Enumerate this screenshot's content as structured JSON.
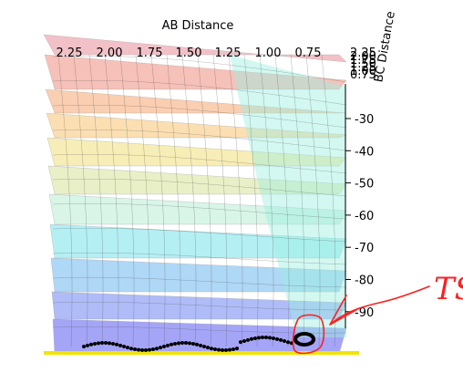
{
  "chart_data": {
    "type": "surface",
    "xlabel": "AB Distance",
    "ylabel": "BC Distance",
    "x_ticks": [
      "2.25",
      "2.00",
      "1.75",
      "1.50",
      "1.25",
      "1.00",
      "0.75"
    ],
    "y_ticks": [
      "2.25",
      "2.00",
      "1.75",
      "1.50",
      "1.25",
      "1.00",
      "0.75"
    ],
    "z_ticks": [
      "-30",
      "-40",
      "-50",
      "-60",
      "-70",
      "-80",
      "-90"
    ],
    "xlim": [
      0.5,
      2.4
    ],
    "ylim": [
      0.5,
      2.4
    ],
    "zlim": [
      -100,
      -20
    ],
    "grid": true,
    "colormap": "jet (contour-filled surface)",
    "band_colors": [
      "#5a5cf0",
      "#6f86f2",
      "#6fb7f0",
      "#78e3ec",
      "#b9eed6",
      "#d8e39a",
      "#f2df7c",
      "#f8c674",
      "#f6a773",
      "#f08f80",
      "#e88f9a"
    ],
    "trajectory_color": "#000000",
    "annotation": {
      "text": "TS",
      "color": "#ff0000"
    }
  }
}
